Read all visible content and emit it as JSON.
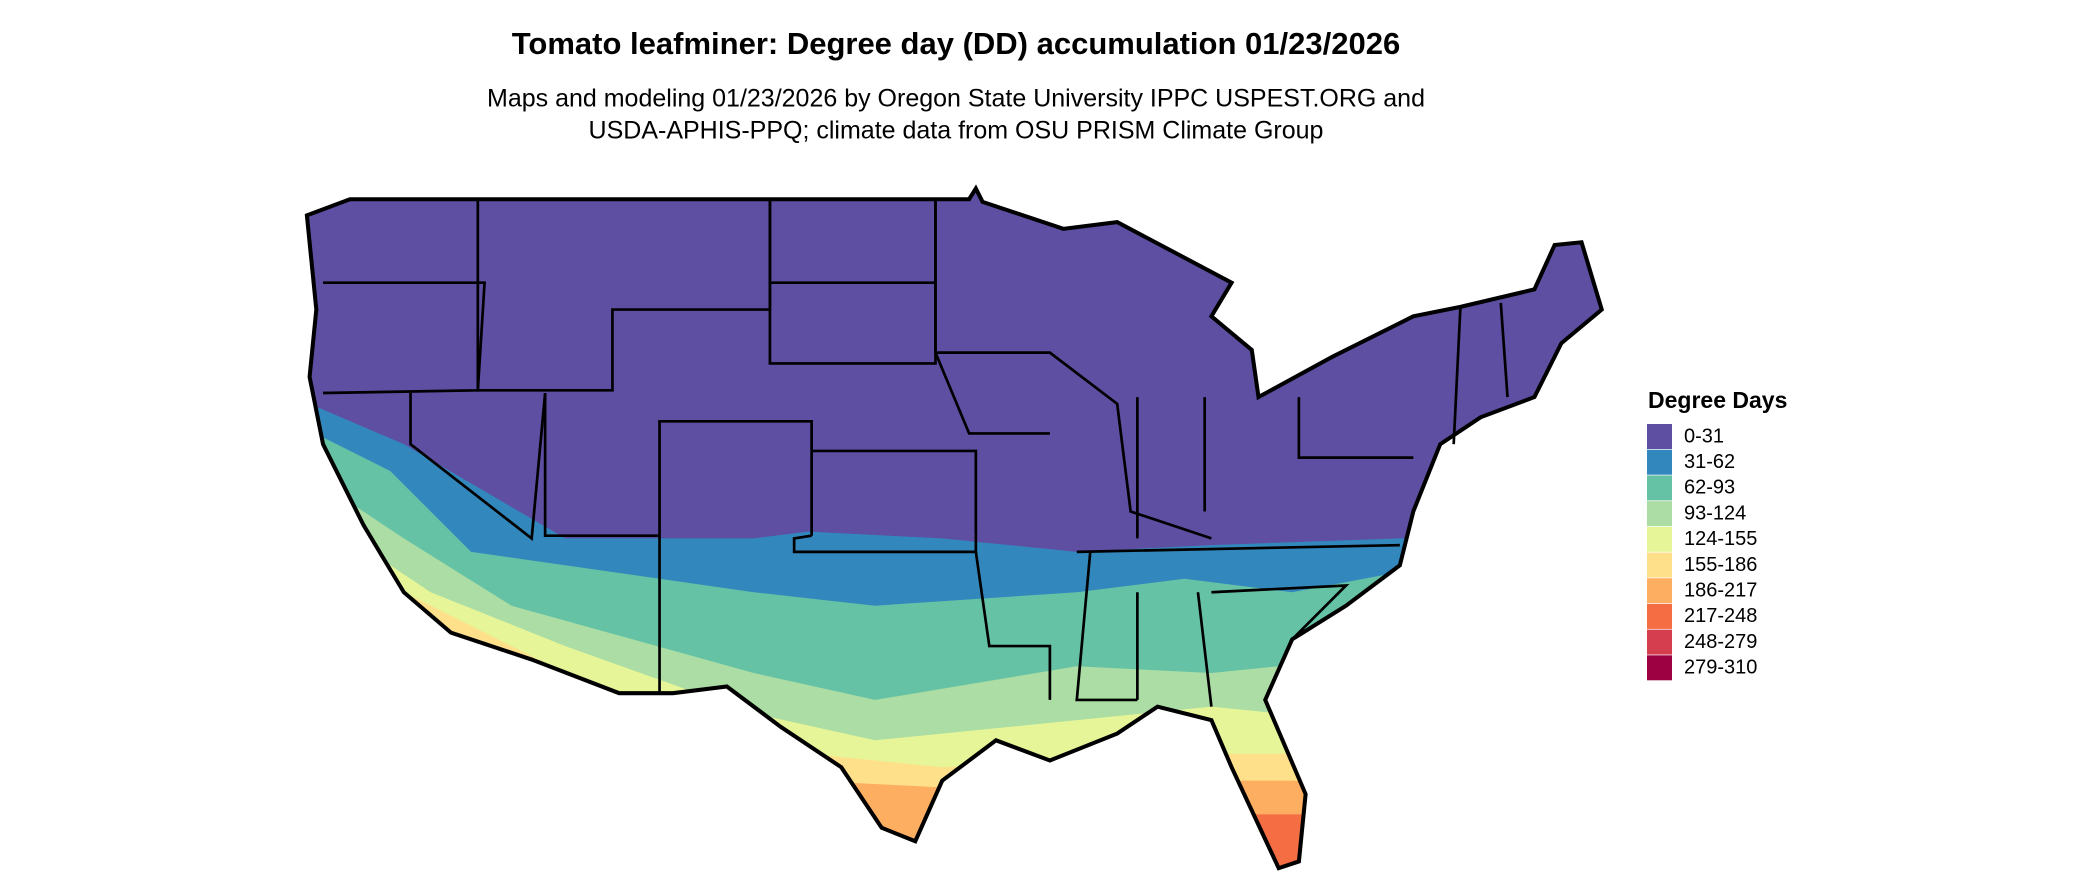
{
  "header": {
    "title": "Tomato leafminer: Degree day (DD) accumulation 01/23/2026",
    "subtitle": [
      "Maps and modeling 01/23/2026 by Oregon State University IPPC USPEST.ORG and",
      "USDA-APHIS-PPQ; climate data from OSU PRISM Climate Group"
    ]
  },
  "legend": {
    "title": "Degree Days",
    "items": [
      {
        "label": "0-31",
        "color": "#5e4fa2"
      },
      {
        "label": "31-62",
        "color": "#3288bd"
      },
      {
        "label": "62-93",
        "color": "#66c2a5"
      },
      {
        "label": "93-124",
        "color": "#abdda4"
      },
      {
        "label": "124-155",
        "color": "#e6f598"
      },
      {
        "label": "155-186",
        "color": "#fee08b"
      },
      {
        "label": "186-217",
        "color": "#fdae61"
      },
      {
        "label": "217-248",
        "color": "#f46d43"
      },
      {
        "label": "248-279",
        "color": "#d53e4f"
      },
      {
        "label": "279-310",
        "color": "#9e0142"
      }
    ]
  }
}
